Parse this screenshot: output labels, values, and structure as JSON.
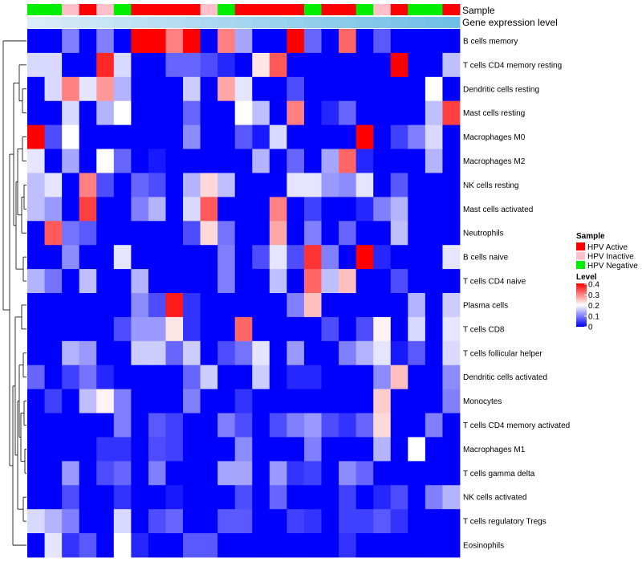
{
  "chart_data": {
    "type": "heatmap",
    "title": "",
    "annotation_labels": {
      "sample": "Sample",
      "gene": "Gene expression level"
    },
    "row_labels": [
      "B cells memory",
      "T cells CD4 memory resting",
      "Dendritic cells resting",
      "Mast cells resting",
      "Macrophages M0",
      "Macrophages M2",
      "NK cells resting",
      "Mast cells activated",
      "Neutrophils",
      "B cells naive",
      "T cells CD4 naive",
      "Plasma cells",
      "T cells CD8",
      "T cells follicular helper",
      "Dendritic cells activated",
      "Monocytes",
      "T cells CD4 memory activated",
      "Macrophages M1",
      "T cells gamma delta",
      "NK cells activated",
      "T cells regulatory  Tregs",
      "Eosinophils"
    ],
    "sample_groups": [
      "HPV Negative",
      "HPV Negative",
      "HPV Inactive",
      "HPV Active",
      "HPV Inactive",
      "HPV Negative",
      "HPV Active",
      "HPV Active",
      "HPV Active",
      "HPV Active",
      "HPV Inactive",
      "HPV Negative",
      "HPV Active",
      "HPV Active",
      "HPV Active",
      "HPV Active",
      "HPV Negative",
      "HPV Active",
      "HPV Active",
      "HPV Negative",
      "HPV Inactive",
      "HPV Active",
      "HPV Negative",
      "HPV Negative",
      "HPV Active"
    ],
    "gene_expression_level": [
      0.04,
      0.06,
      0.08,
      0.1,
      0.12,
      0.14,
      0.16,
      0.18,
      0.2,
      0.22,
      0.24,
      0.26,
      0.28,
      0.3,
      0.32,
      0.34,
      0.36,
      0.38,
      0.4,
      0.42,
      0.44,
      0.46,
      0.48,
      0.5,
      0.52
    ],
    "values": [
      [
        0,
        0,
        0.1,
        0,
        0.1,
        0,
        0.4,
        0.4,
        0.3,
        0.4,
        0,
        0.3,
        0.13,
        0,
        0,
        0.4,
        0.08,
        0,
        0.32,
        0,
        0.07,
        0,
        0,
        0,
        0
      ],
      [
        0.17,
        0.17,
        0,
        0,
        0.37,
        0.17,
        0,
        0,
        0.08,
        0.08,
        0.06,
        0.03,
        0,
        0.22,
        0.33,
        0,
        0,
        0,
        0,
        0,
        0,
        0.4,
        0,
        0,
        0.15
      ],
      [
        0,
        0.17,
        0.3,
        0.18,
        0.28,
        0.14,
        0,
        0,
        0,
        0.16,
        0,
        0.27,
        0.18,
        0,
        0,
        0.06,
        0,
        0,
        0,
        0,
        0,
        0,
        0,
        0.2,
        0
      ],
      [
        0,
        0,
        0.17,
        0,
        0.14,
        0.2,
        0,
        0,
        0,
        0.08,
        0,
        0,
        0.2,
        0.15,
        0,
        0.3,
        0,
        0.03,
        0.08,
        0,
        0,
        0,
        0,
        0.15,
        0.35
      ],
      [
        0.4,
        0.06,
        0.2,
        0,
        0,
        0,
        0,
        0,
        0,
        0.11,
        0,
        0,
        0.07,
        0.02,
        0.17,
        0,
        0,
        0,
        0,
        0.4,
        0,
        0.05,
        0.1,
        0.17,
        0
      ],
      [
        0.18,
        0,
        0.13,
        0,
        0.2,
        0.08,
        0,
        0.02,
        0,
        0,
        0,
        0,
        0,
        0.14,
        0,
        0.08,
        0,
        0.13,
        0.32,
        0.03,
        0,
        0,
        0,
        0.14,
        0
      ],
      [
        0.15,
        0.18,
        0,
        0.3,
        0.06,
        0,
        0.08,
        0.06,
        0,
        0.14,
        0.23,
        0.15,
        0,
        0,
        0,
        0.18,
        0.18,
        0.12,
        0.11,
        0.18,
        0,
        0.07,
        0,
        0,
        0
      ],
      [
        0.15,
        0.12,
        0,
        0.35,
        0,
        0,
        0.1,
        0.14,
        0,
        0.17,
        0.33,
        0,
        0,
        0,
        0.3,
        0,
        0.05,
        0,
        0,
        0.03,
        0.1,
        0.14,
        0,
        0,
        0
      ],
      [
        0,
        0.33,
        0.09,
        0.07,
        0,
        0,
        0,
        0,
        0,
        0.06,
        0.23,
        0.09,
        0,
        0,
        0.27,
        0,
        0.1,
        0,
        0.08,
        0,
        0,
        0.15,
        0,
        0,
        0
      ],
      [
        0,
        0,
        0.11,
        0,
        0,
        0.18,
        0,
        0,
        0,
        0,
        0,
        0.1,
        0,
        0.06,
        0.18,
        0.06,
        0.36,
        0.1,
        0,
        0.4,
        0.03,
        0,
        0,
        0,
        0.18
      ],
      [
        0.14,
        0.09,
        0,
        0.15,
        0,
        0,
        0.14,
        0,
        0,
        0,
        0,
        0.1,
        0,
        0,
        0.15,
        0,
        0.32,
        0.15,
        0.25,
        0,
        0,
        0.06,
        0,
        0,
        0
      ],
      [
        0,
        0,
        0,
        0,
        0,
        0,
        0.11,
        0.06,
        0.38,
        0.04,
        0,
        0,
        0,
        0,
        0,
        0.1,
        0.25,
        0,
        0,
        0,
        0,
        0,
        0.14,
        0,
        0.16
      ],
      [
        0,
        0,
        0,
        0,
        0,
        0.06,
        0.12,
        0.12,
        0.22,
        0.04,
        0,
        0,
        0.32,
        0,
        0,
        0,
        0,
        0.06,
        0,
        0.06,
        0.21,
        0,
        0.17,
        0,
        0.18
      ],
      [
        0,
        0,
        0.14,
        0.12,
        0,
        0,
        0.16,
        0.16,
        0.08,
        0.16,
        0,
        0.06,
        0.09,
        0.18,
        0,
        0.12,
        0,
        0,
        0.1,
        0.14,
        0.18,
        0.02,
        0.07,
        0,
        0.17
      ],
      [
        0.08,
        0,
        0.05,
        0.09,
        0.03,
        0,
        0,
        0,
        0,
        0.08,
        0.16,
        0,
        0,
        0.16,
        0,
        0.03,
        0.03,
        0,
        0,
        0,
        0.11,
        0.25,
        0,
        0,
        0.11
      ],
      [
        0,
        0.05,
        0,
        0.15,
        0.21,
        0.1,
        0,
        0,
        0,
        0.1,
        0,
        0,
        0.04,
        0,
        0,
        0,
        0,
        0,
        0,
        0,
        0.24,
        0,
        0,
        0,
        0.1
      ],
      [
        0,
        0,
        0,
        0,
        0,
        0.1,
        0,
        0.07,
        0.05,
        0,
        0,
        0.1,
        0.06,
        0,
        0.06,
        0.1,
        0.12,
        0.06,
        0.04,
        0.08,
        0.23,
        0,
        0,
        0.1,
        0
      ],
      [
        0,
        0,
        0,
        0,
        0.04,
        0.04,
        0,
        0.06,
        0.05,
        0,
        0,
        0,
        0.11,
        0,
        0,
        0,
        0.1,
        0,
        0,
        0,
        0.14,
        0,
        0.2,
        0,
        0
      ],
      [
        0,
        0,
        0.12,
        0,
        0.06,
        0.08,
        0,
        0.1,
        0,
        0,
        0,
        0.13,
        0.13,
        0,
        0.12,
        0.04,
        0.05,
        0,
        0.11,
        0.08,
        0,
        0,
        0,
        0,
        0
      ],
      [
        0,
        0,
        0.06,
        0,
        0,
        0.04,
        0,
        0,
        0.02,
        0,
        0,
        0,
        0.06,
        0,
        0.08,
        0,
        0,
        0,
        0.05,
        0,
        0.03,
        0.06,
        0,
        0.1,
        0.14
      ],
      [
        0.17,
        0.14,
        0.1,
        0,
        0,
        0.17,
        0,
        0.06,
        0.08,
        0,
        0,
        0.07,
        0.07,
        0,
        0,
        0.05,
        0.04,
        0,
        0.05,
        0.05,
        0.07,
        0.04,
        0,
        0,
        0
      ],
      [
        0,
        0.18,
        0.04,
        0.07,
        0,
        0.2,
        0.03,
        0,
        0,
        0.07,
        0.07,
        0,
        0,
        0,
        0,
        0,
        0,
        0,
        0.04,
        0,
        0,
        0,
        0,
        0,
        0
      ]
    ],
    "legend": {
      "sample_title": "Sample",
      "sample_entries": [
        {
          "label": "HPV Active",
          "color": "#ff0000"
        },
        {
          "label": "HPV Inactive",
          "color": "#ffc0cb"
        },
        {
          "label": "HPV Negative",
          "color": "#00ee00"
        }
      ],
      "level_title": "Level",
      "level_ticks": [
        "0.4",
        "0.3",
        "0.2",
        "0.1",
        "0"
      ],
      "level_range": [
        0,
        0.4
      ],
      "colors": {
        "low": "#0000ff",
        "mid": "#ffffff",
        "high": "#ff0000"
      },
      "gene_colors": {
        "low": "#d9ecf7",
        "high": "#6fbfe6"
      }
    }
  }
}
